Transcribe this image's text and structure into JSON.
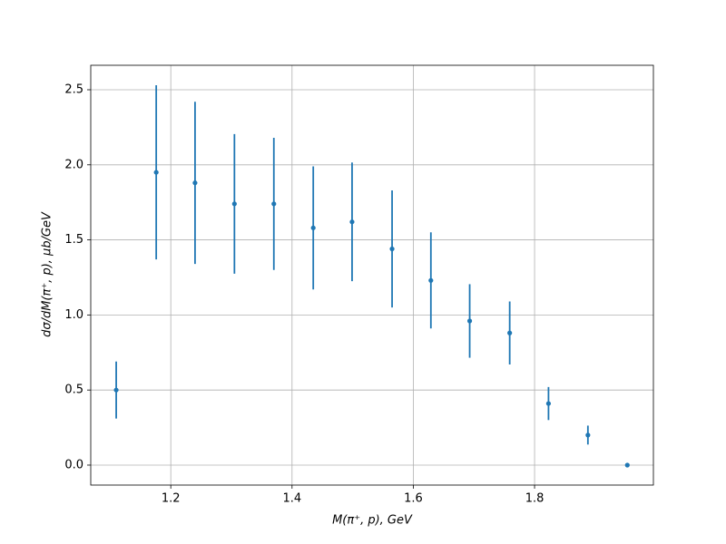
{
  "chart_data": {
    "type": "errorbar",
    "xlabel": "M(π⁺, p), GeV",
    "ylabel": "dσ/dM(π⁺, p), μb/GeV",
    "x": [
      1.11,
      1.176,
      1.24,
      1.305,
      1.37,
      1.435,
      1.499,
      1.565,
      1.629,
      1.693,
      1.759,
      1.823,
      1.888,
      1.953
    ],
    "series": [
      {
        "color": "#1f77b4",
        "values": [
          0.5,
          1.95,
          1.88,
          1.74,
          1.74,
          1.58,
          1.62,
          1.44,
          1.23,
          0.96,
          0.88,
          0.41,
          0.2,
          0.0
        ],
        "errors": [
          0.19,
          0.58,
          0.54,
          0.465,
          0.44,
          0.41,
          0.395,
          0.39,
          0.32,
          0.245,
          0.21,
          0.11,
          0.063,
          0.0
        ]
      }
    ],
    "xlim": [
      1.068,
      1.996
    ],
    "xticks": [
      1.2,
      1.4,
      1.6,
      1.8
    ],
    "ylim": [
      -0.133,
      2.663
    ],
    "yticks": [
      {
        "value": 0,
        "label": "0.0"
      },
      0.5,
      {
        "value": 1,
        "label": "1.0"
      },
      1.5,
      {
        "value": 2,
        "label": "2.0"
      },
      2.5
    ],
    "grid": true
  }
}
